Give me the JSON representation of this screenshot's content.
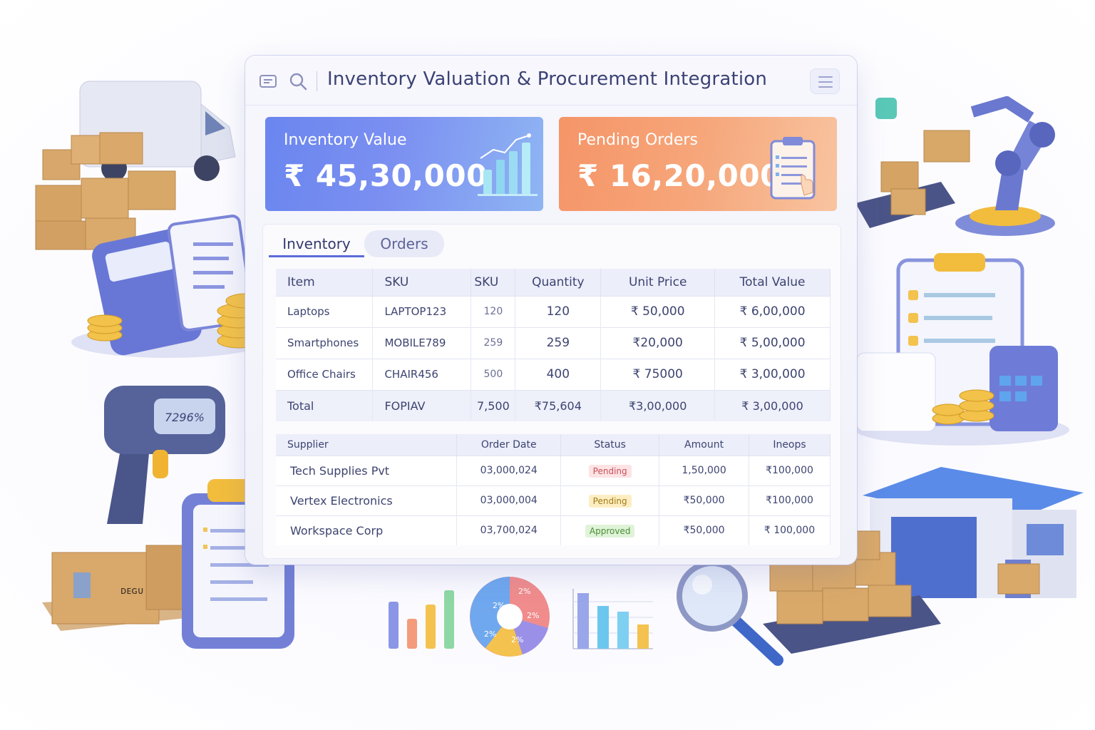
{
  "window": {
    "title": "Inventory Valuation & Procurement Integration"
  },
  "kpis": {
    "inventory": {
      "label": "Inventory Value",
      "value": "₹ 45,30,000"
    },
    "pending": {
      "label": "Pending Orders",
      "value": "₹ 16,20,000"
    }
  },
  "tabs": [
    {
      "label": "Inventory"
    },
    {
      "label": "Orders"
    }
  ],
  "inventory_table": {
    "headers": [
      "Item",
      "SKU",
      "SKU",
      "Quantity",
      "Unit Price",
      "Total Value"
    ],
    "rows": [
      [
        "Laptops",
        "LAPTOP123",
        "120",
        "120",
        "₹ 50,000",
        "₹ 6,00,000"
      ],
      [
        "Smartphones",
        "MOBILE789",
        "259",
        "259",
        "₹20,000",
        "₹ 5,00,000"
      ],
      [
        "Office Chairs",
        "CHAIR456",
        "500",
        "400",
        "₹ 75000",
        "₹ 3,00,000"
      ]
    ],
    "total": [
      "Total",
      "FOPIAV",
      "7,500",
      "₹75,604",
      "₹3,00,000",
      "₹ 3,00,000"
    ]
  },
  "orders_table": {
    "headers": [
      "Supplier",
      "Order Date",
      "Status",
      "Amount",
      "Ineops"
    ],
    "rows": [
      [
        "Tech Supplies Pvt",
        "03,000,024",
        "Pending",
        "1,50,000",
        "₹100,000"
      ],
      [
        "Vertex Electronics",
        "03,000,004",
        "Pending",
        "₹50,000",
        "₹100,000"
      ],
      [
        "Workspace Corp",
        "03,700,024",
        "Approved",
        "₹50,000",
        "₹ 100,000"
      ]
    ]
  },
  "decor": {
    "scanner_display": "7296%",
    "box_label": "ᴅᴇɢᴜ",
    "pie_labels": [
      "2%",
      "2%",
      "2%",
      "2%",
      "2%"
    ],
    "pie_label_texts": [
      "2%",
      "2%",
      "2%",
      "2%",
      "2%"
    ],
    "colors": {
      "accent": "#5c6bd8",
      "kpi_blue": "#6a86ef",
      "kpi_orange": "#f59568",
      "pending_badge": "#fde3e4",
      "approved_badge": "#dff3d8"
    }
  }
}
